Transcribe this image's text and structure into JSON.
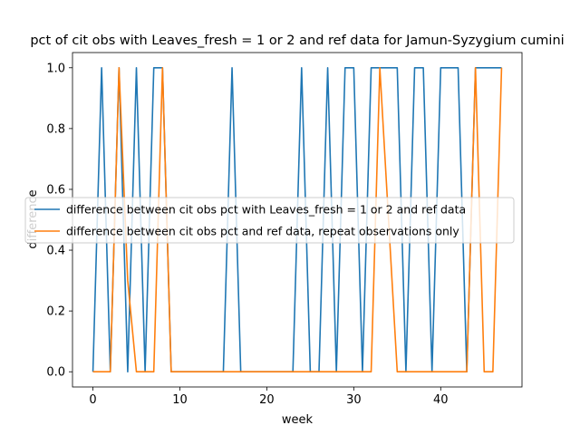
{
  "chart_data": {
    "type": "line",
    "title": "pct of cit obs with Leaves_fresh = 1 or 2 and ref data for Jamun-Syzygium cumini",
    "xlabel": "week",
    "ylabel": "difference",
    "xlim": [
      -2.35,
      49.35
    ],
    "ylim": [
      -0.05,
      1.05
    ],
    "x_ticks": [
      0,
      10,
      20,
      30,
      40
    ],
    "y_ticks": [
      0.0,
      0.2,
      0.4,
      0.6,
      0.8,
      1.0
    ],
    "legend_position": "center-left",
    "grid": false,
    "series": [
      {
        "name": "difference between cit obs pct with Leaves_fresh = 1 or 2 and ref data",
        "color": "#1f77b4",
        "x": [
          0,
          1,
          2,
          3,
          4,
          5,
          6,
          7,
          8,
          9,
          10,
          11,
          12,
          13,
          14,
          15,
          16,
          17,
          18,
          19,
          20,
          21,
          22,
          23,
          24,
          25,
          26,
          27,
          28,
          29,
          30,
          31,
          32,
          33,
          34,
          35,
          36,
          37,
          38,
          39,
          40,
          41,
          42,
          43,
          44,
          45,
          46,
          47
        ],
        "y": [
          0,
          1,
          0,
          1,
          0,
          1,
          0,
          1,
          1,
          0,
          0,
          0,
          0,
          0,
          0,
          0,
          1,
          0,
          0,
          0,
          0,
          0,
          0,
          0,
          1,
          0,
          0,
          1,
          0,
          1,
          1,
          0,
          1,
          1,
          1,
          1,
          0,
          1,
          1,
          0,
          1,
          1,
          1,
          0,
          1,
          1,
          1,
          1
        ]
      },
      {
        "name": "difference between cit obs pct and ref data, repeat observations only",
        "color": "#ff7f0e",
        "x": [
          0,
          1,
          2,
          3,
          4,
          5,
          6,
          7,
          8,
          9,
          10,
          11,
          12,
          13,
          14,
          15,
          16,
          17,
          18,
          19,
          20,
          21,
          22,
          23,
          24,
          25,
          26,
          27,
          28,
          29,
          30,
          31,
          32,
          33,
          34,
          35,
          36,
          37,
          38,
          39,
          40,
          41,
          42,
          43,
          44,
          45,
          46,
          47
        ],
        "y": [
          0,
          0,
          0,
          1,
          0.3,
          0,
          0,
          0,
          1,
          0,
          0,
          0,
          0,
          0,
          0,
          0,
          0,
          0,
          0,
          0,
          0,
          0,
          0,
          0,
          0,
          0,
          0,
          0,
          0,
          0,
          0,
          0,
          0,
          1,
          0.5,
          0,
          0,
          0,
          0,
          0,
          0,
          0,
          0,
          0,
          1,
          0,
          0,
          1
        ]
      }
    ]
  }
}
